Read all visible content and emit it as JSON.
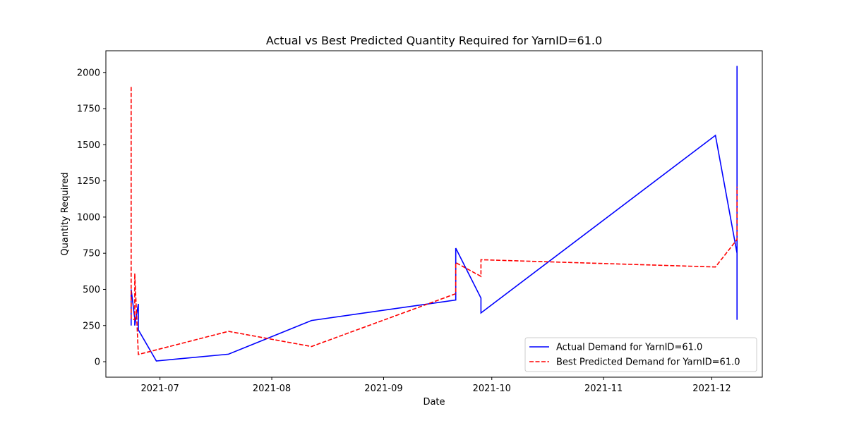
{
  "chart_data": {
    "type": "line",
    "title": "Actual vs Best Predicted Quantity Required for YarnID=61.0",
    "xlabel": "Date",
    "ylabel": "Quantity Required",
    "x_ticks": [
      "2021-07",
      "2021-08",
      "2021-09",
      "2021-10",
      "2021-11",
      "2021-12"
    ],
    "x_tick_dates": [
      "2021-07-01",
      "2021-08-01",
      "2021-09-01",
      "2021-10-01",
      "2021-11-01",
      "2021-12-01"
    ],
    "y_ticks": [
      0,
      250,
      500,
      750,
      1000,
      1250,
      1500,
      1750,
      2000
    ],
    "xlim": [
      "2021-06-16",
      "2021-12-15"
    ],
    "ylim": [
      -107,
      2150
    ],
    "grid": false,
    "legend_position": "lower right",
    "series": [
      {
        "name": "Actual Demand for YarnID=61.0",
        "color": "#0000ff",
        "style": "solid",
        "points": [
          [
            "2021-06-23",
            250
          ],
          [
            "2021-06-23",
            500
          ],
          [
            "2021-06-24",
            300
          ],
          [
            "2021-06-24",
            250
          ],
          [
            "2021-06-25",
            400
          ],
          [
            "2021-06-25",
            220
          ],
          [
            "2021-06-30",
            5
          ],
          [
            "2021-07-20",
            52
          ],
          [
            "2021-08-12",
            285
          ],
          [
            "2021-09-21",
            427
          ],
          [
            "2021-09-21",
            785
          ],
          [
            "2021-09-28",
            440
          ],
          [
            "2021-09-28",
            337
          ],
          [
            "2021-12-02",
            1565
          ],
          [
            "2021-12-08",
            750
          ],
          [
            "2021-12-08",
            290
          ],
          [
            "2021-12-08",
            2045
          ],
          [
            "2021-12-08",
            735
          ]
        ]
      },
      {
        "name": "Best Predicted Demand for YarnID=61.0",
        "color": "#ff0000",
        "style": "dashed",
        "points": [
          [
            "2021-06-23",
            1900
          ],
          [
            "2021-06-23",
            300
          ],
          [
            "2021-06-24",
            290
          ],
          [
            "2021-06-24",
            610
          ],
          [
            "2021-06-25",
            50
          ],
          [
            "2021-07-20",
            210
          ],
          [
            "2021-08-12",
            105
          ],
          [
            "2021-09-21",
            470
          ],
          [
            "2021-09-21",
            685
          ],
          [
            "2021-09-28",
            590
          ],
          [
            "2021-09-28",
            705
          ],
          [
            "2021-12-02",
            655
          ],
          [
            "2021-12-08",
            845
          ],
          [
            "2021-12-08",
            1210
          ]
        ]
      }
    ]
  }
}
